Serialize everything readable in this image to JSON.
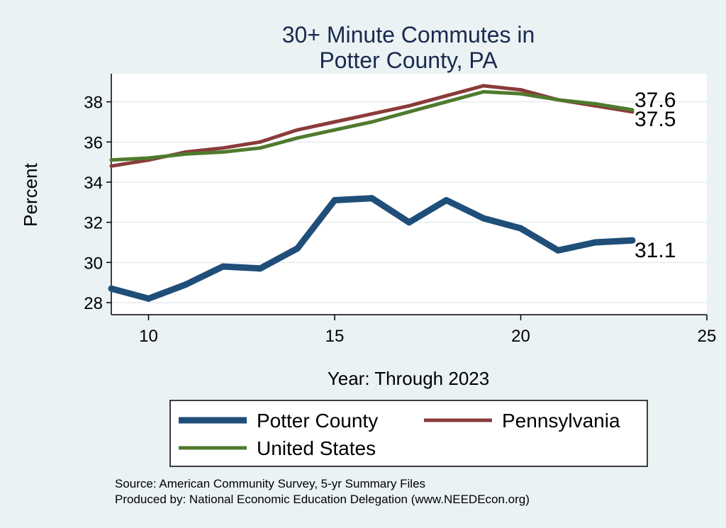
{
  "chart_data": {
    "type": "line",
    "title": [
      "30+ Minute Commutes in",
      "Potter County, PA"
    ],
    "xlabel": "Year: Through 2023",
    "ylabel": "Percent",
    "xlim": [
      9,
      25
    ],
    "ylim": [
      27.4,
      39.4
    ],
    "xticks": [
      10,
      15,
      20,
      25
    ],
    "yticks": [
      28,
      30,
      32,
      34,
      36,
      38
    ],
    "grid": true,
    "legend_position": "bottom",
    "series": [
      {
        "name": "Potter County",
        "color": "#1f4e79",
        "x": [
          9,
          10,
          11,
          12,
          13,
          14,
          15,
          16,
          17,
          18,
          19,
          20,
          21,
          22,
          23
        ],
        "y": [
          28.7,
          28.2,
          28.9,
          29.8,
          29.7,
          30.7,
          33.1,
          33.2,
          32.0,
          33.1,
          32.2,
          31.7,
          30.6,
          31.0,
          31.1
        ],
        "end_label": "31.1"
      },
      {
        "name": "Pennsylvania",
        "color": "#8b3a3a",
        "x": [
          9,
          10,
          11,
          12,
          13,
          14,
          15,
          16,
          17,
          18,
          19,
          20,
          21,
          22,
          23
        ],
        "y": [
          34.8,
          35.1,
          35.5,
          35.7,
          36.0,
          36.6,
          37.0,
          37.4,
          37.8,
          38.3,
          38.8,
          38.6,
          38.1,
          37.8,
          37.5
        ],
        "end_label": "37.5"
      },
      {
        "name": "United States",
        "color": "#4f7a2e",
        "x": [
          9,
          10,
          11,
          12,
          13,
          14,
          15,
          16,
          17,
          18,
          19,
          20,
          21,
          22,
          23
        ],
        "y": [
          35.1,
          35.2,
          35.4,
          35.5,
          35.7,
          36.2,
          36.6,
          37.0,
          37.5,
          38.0,
          38.5,
          38.4,
          38.1,
          37.9,
          37.6
        ],
        "end_label": "37.6"
      }
    ],
    "notes": [
      "Source: American Community Survey, 5-yr Summary Files",
      "Produced by: National Economic Education Delegation (www.NEEDEcon.org)"
    ]
  }
}
